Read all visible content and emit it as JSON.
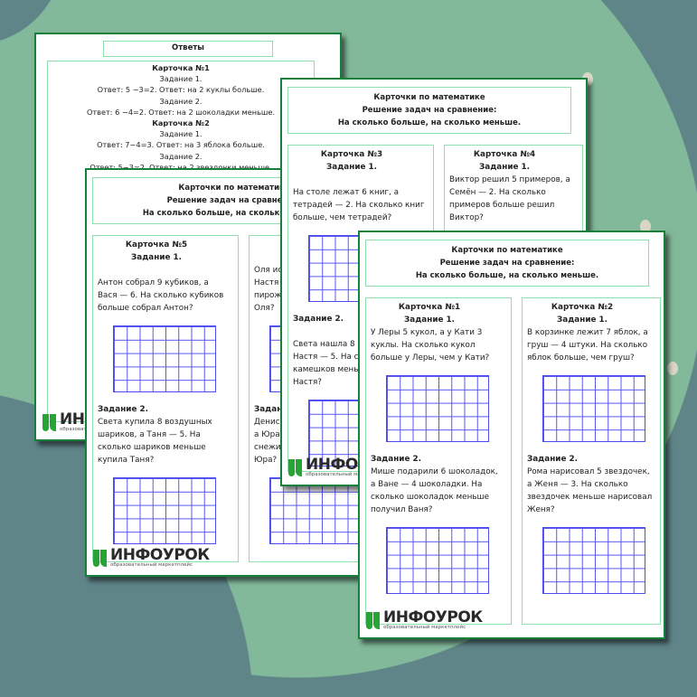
{
  "colors": {
    "background": "#5f8589",
    "accent_shape": "#82b99a",
    "page_border": "#17803a",
    "box_border": "#8fe0ad",
    "grid": "#5656f2",
    "logo_green": "#27a534"
  },
  "answers_page": {
    "title": "Ответы",
    "lines": [
      {
        "text": "Карточка №1",
        "bold": true
      },
      {
        "text": "Задание 1."
      },
      {
        "text": "Ответ: 5 −3=2. Ответ: на 2 куклы больше."
      },
      {
        "text": "Задание 2."
      },
      {
        "text": "Ответ: 6 −4=2. Ответ: на 2 шоколадки меньше."
      },
      {
        "text": "Карточка №2",
        "bold": true
      },
      {
        "text": "Задание 1."
      },
      {
        "text": "Ответ: 7−4=3. Ответ: на 3 яблока больше."
      },
      {
        "text": "Задание 2."
      },
      {
        "text": "Ответ: 5−3=2. Ответ: на 2 звездочки меньше."
      }
    ]
  },
  "logo": {
    "word": "ИНФОУРОК",
    "sub": "образовательный маркетплейс"
  },
  "worksheets": [
    {
      "header": [
        "Карточки по математике",
        "Решение задач на сравнение:",
        "На сколько больше, на сколько меньше."
      ],
      "cards": [
        {
          "title": "Карточка №5",
          "task1": "Задание 1.",
          "text1": [
            "",
            "Антон собрал 9 кубиков, а",
            "Вася — 6. На сколько кубиков",
            "больше собрал Антон?"
          ],
          "task2": "Задание 2.",
          "text2": [
            "Света купила 8 воздушных",
            "шариков, а Таня — 5. На",
            "сколько шариков меньше",
            "купила Таня?"
          ]
        },
        {
          "title": "К",
          "task1": "З",
          "text1": [
            "Оля испе",
            "Настя —",
            "пирожко",
            "Оля?"
          ],
          "task2": "Задание",
          "text2": [
            "Денис вы",
            "а Юра —",
            "снежино",
            "Юра?"
          ]
        }
      ]
    },
    {
      "header": [
        "Карточки по математике",
        "Решение задач на сравнение:",
        "На сколько больше, на сколько меньше."
      ],
      "cards": [
        {
          "title": "Карточка №3",
          "task1": "Задание 1.",
          "text1": [
            "",
            "На столе лежат 6 книг, а",
            "тетрадей — 2. На сколько книг",
            "больше, чем тетрадей?"
          ],
          "task2": "Задание 2.",
          "text2": [
            "",
            "Света нашла 8 к",
            "Настя — 5. На ск",
            "камешков мень",
            "Настя?"
          ]
        },
        {
          "title": "Карточка №4",
          "task1": "Задание 1.",
          "text1": [
            "Виктор решил 5 примеров, а",
            "Семён — 2. На сколько",
            "примеров больше решил",
            "Виктор?"
          ],
          "task2": "",
          "text2": []
        }
      ]
    },
    {
      "header": [
        "Карточки по математике",
        "Решение задач на сравнение:",
        "На сколько больше, на сколько меньше."
      ],
      "cards": [
        {
          "title": "Карточка №1",
          "task1": "Задание 1.",
          "text1": [
            "У Леры 5 кукол, а у Кати 3",
            "куклы. На сколько кукол",
            "больше у Леры, чем у Кати?"
          ],
          "task2": "Задание 2.",
          "text2": [
            "Мише подарили 6 шоколадок,",
            "а Ване — 4 шоколадки. На",
            "сколько шоколадок меньше",
            "получил Ваня?"
          ]
        },
        {
          "title": "Карточка №2",
          "task1": "Задание 1.",
          "text1": [
            "В корзинке лежит 7 яблок, а",
            "груш — 4 штуки. На сколько",
            "яблок больше, чем груш?"
          ],
          "task2": "Задание 2.",
          "text2": [
            "Рома нарисовал 5 звездочек,",
            "а Женя — 3. На сколько",
            "звездочек меньше нарисовал",
            "Женя?"
          ]
        }
      ]
    }
  ]
}
